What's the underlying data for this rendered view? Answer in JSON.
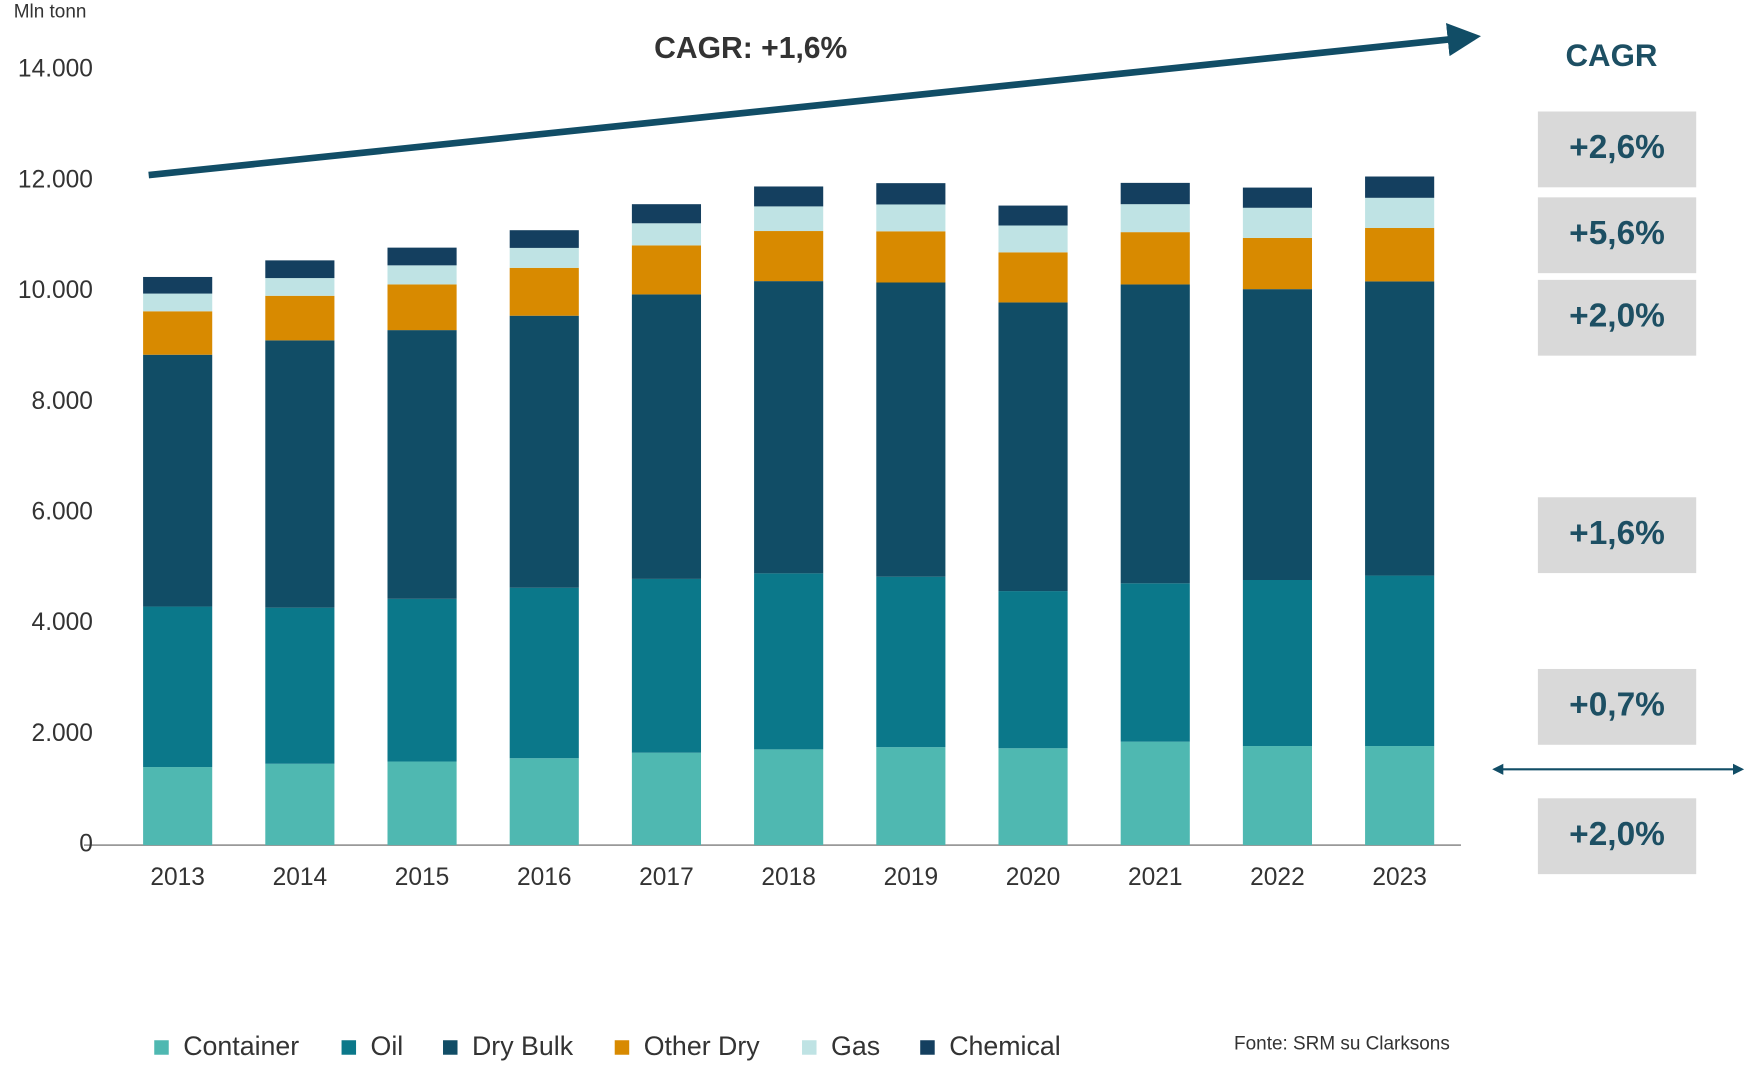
{
  "chart_data": {
    "type": "stacked_bar",
    "y_unit_label": "Mln tonn",
    "annotation": "CAGR: +1,6%",
    "side_title": "CAGR",
    "side_labels": [
      "+2,6%",
      "+5,6%",
      "+2,0%",
      "+1,6%",
      "+0,7%",
      "+2,0%"
    ],
    "source": "Fonte: SRM su Clarksons",
    "categories": [
      "2013",
      "2014",
      "2015",
      "2016",
      "2017",
      "2018",
      "2019",
      "2020",
      "2021",
      "2022",
      "2023"
    ],
    "series": [
      {
        "name": "Container",
        "color": "#4fb8b1",
        "values": [
          1410,
          1470,
          1510,
          1570,
          1670,
          1730,
          1770,
          1750,
          1870,
          1790,
          1790
        ]
      },
      {
        "name": "Oil",
        "color": "#0b788a",
        "values": [
          2900,
          2820,
          2940,
          3080,
          3140,
          3180,
          3080,
          2840,
          2860,
          3000,
          3080
        ]
      },
      {
        "name": "Dry Bulk",
        "color": "#114d66",
        "values": [
          4550,
          4830,
          4855,
          4915,
          5140,
          5280,
          5315,
          5215,
          5400,
          5255,
          5315
        ]
      },
      {
        "name": "Other Dry",
        "color": "#d88a00",
        "values": [
          785,
          805,
          825,
          865,
          885,
          905,
          925,
          905,
          945,
          925,
          965
        ]
      },
      {
        "name": "Gas",
        "color": "#bfe3e4",
        "values": [
          320,
          320,
          345,
          360,
          400,
          445,
          485,
          485,
          505,
          545,
          545
        ]
      },
      {
        "name": "Chemical",
        "color": "#143f5f",
        "values": [
          300,
          320,
          320,
          320,
          345,
          360,
          385,
          360,
          385,
          365,
          385
        ]
      }
    ],
    "ylim": [
      0,
      14000
    ],
    "yticks": [
      0,
      {
        "value": 2000,
        "label": "2.000"
      },
      {
        "value": 4000,
        "label": "4.000"
      },
      {
        "value": 6000,
        "label": "6.000"
      },
      {
        "value": 8000,
        "label": "8.000"
      },
      {
        "value": 10000,
        "label": "10.000"
      },
      {
        "value": 12000,
        "label": "12.000"
      },
      {
        "value": 14000,
        "label": "14.000"
      }
    ],
    "grid": false
  }
}
